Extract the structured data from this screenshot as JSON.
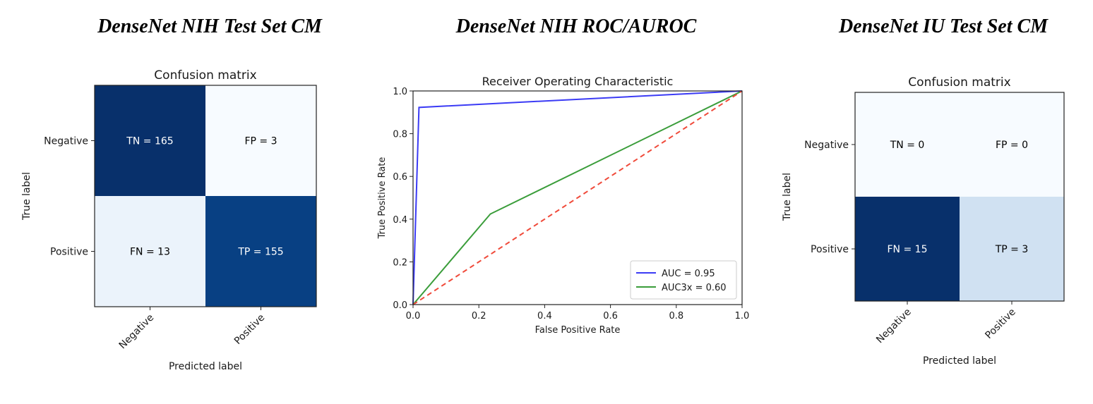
{
  "panel_titles": [
    "DenseNet NIH Test Set CM",
    "DenseNet NIH ROC/AUROC",
    "DenseNet IU Test Set CM"
  ],
  "chart_data": [
    {
      "type": "heatmap",
      "title": "Confusion matrix",
      "xlabel": "Predicted label",
      "ylabel": "True label",
      "x_tick_labels": [
        "Negative",
        "Positive"
      ],
      "y_tick_labels": [
        "Negative",
        "Positive"
      ],
      "cells": [
        [
          {
            "label": "TN = 165",
            "value": 165
          },
          {
            "label": "FP = 3",
            "value": 3
          }
        ],
        [
          {
            "label": "FN = 13",
            "value": 13
          },
          {
            "label": "TP = 155",
            "value": 155
          }
        ]
      ],
      "colormap": "Blues"
    },
    {
      "type": "line",
      "title": "Receiver Operating Characteristic",
      "xlabel": "False Positive Rate",
      "ylabel": "True Positive Rate",
      "xlim": [
        0.0,
        1.0
      ],
      "ylim": [
        0.0,
        1.0
      ],
      "x_ticks": [
        "0.0",
        "0.2",
        "0.4",
        "0.6",
        "0.8",
        "1.0"
      ],
      "y_ticks": [
        "0.0",
        "0.2",
        "0.4",
        "0.6",
        "0.8",
        "1.0"
      ],
      "legend_position": "lower-right",
      "series": [
        {
          "name": "AUC = 0.95",
          "color": "#3b3bf5",
          "style": "solid",
          "points": [
            [
              0.0,
              0.0
            ],
            [
              0.018,
              0.923
            ],
            [
              1.0,
              1.0
            ]
          ]
        },
        {
          "name": "AUC3x = 0.60",
          "color": "#3a9d3a",
          "style": "solid",
          "points": [
            [
              0.0,
              0.0
            ],
            [
              0.235,
              0.424
            ],
            [
              1.0,
              1.0
            ]
          ]
        },
        {
          "color": "#f04a3a",
          "style": "dashed",
          "points": [
            [
              0.0,
              0.0
            ],
            [
              1.0,
              1.0
            ]
          ]
        }
      ]
    },
    {
      "type": "heatmap",
      "title": "Confusion matrix",
      "xlabel": "Predicted label",
      "ylabel": "True label",
      "x_tick_labels": [
        "Negative",
        "Positive"
      ],
      "y_tick_labels": [
        "Negative",
        "Positive"
      ],
      "cells": [
        [
          {
            "label": "TN = 0",
            "value": 0
          },
          {
            "label": "FP = 0",
            "value": 0
          }
        ],
        [
          {
            "label": "FN = 15",
            "value": 15
          },
          {
            "label": "TP = 3",
            "value": 3
          }
        ]
      ],
      "colormap": "Blues"
    }
  ]
}
